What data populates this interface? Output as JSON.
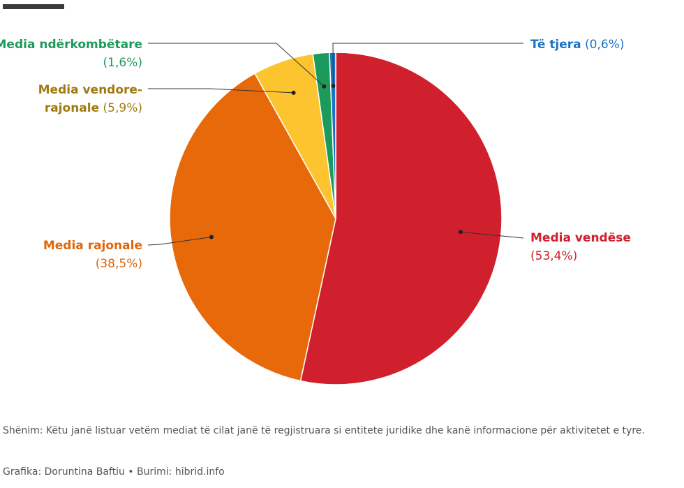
{
  "chart_data": {
    "type": "pie",
    "slices": [
      {
        "label": "Media vendëse",
        "value": 53.4,
        "value_text": "(53,4%)",
        "color": "#D0202E"
      },
      {
        "label": "Media rajonale",
        "value": 38.5,
        "value_text": "(38,5%)",
        "color": "#E8690A"
      },
      {
        "label": "Media vendore-rajonale",
        "value": 5.9,
        "value_text": "(5,9%)",
        "color": "#FCC42E"
      },
      {
        "label": "Media ndërkombëtare",
        "value": 1.6,
        "value_text": "(1,6%)",
        "color": "#1C9A5B"
      },
      {
        "label": "Të tjera",
        "value": 0.6,
        "value_text": "(0,6%)",
        "color": "#1A73C4"
      }
    ]
  },
  "labels": {
    "vendese": {
      "name": "Media vendëse",
      "value": "(53,4%)"
    },
    "rajonale": {
      "name": "Media rajonale",
      "value": "(38,5%)"
    },
    "vendore_line1": "Media vendore-",
    "vendore_line2": "rajonale",
    "vendore_value": "(5,9%)",
    "nderkombetare": {
      "name": "Media ndërkombëtare",
      "value": "(1,6%)"
    },
    "tjera": {
      "name": "Të tjera",
      "value": "(0,6%)"
    }
  },
  "label_colors": {
    "vendese": "#D0202E",
    "rajonale": "#E0650A",
    "vendore": "#A07A10",
    "nderkombetare": "#1C9A5B",
    "tjera": "#1A73C4"
  },
  "footer": {
    "note": "Shënim: Këtu janë listuar vetëm mediat të cilat janë të regjistruara si entitete juridike dhe kanë informacione për aktivitetet e tyre.",
    "credit": "Grafika: Doruntina Baftiu • Burimi: hibrid.info"
  }
}
